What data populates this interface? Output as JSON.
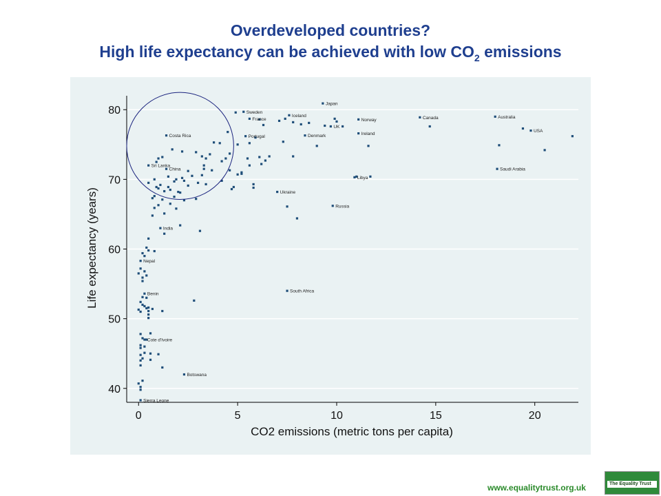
{
  "header": {
    "title_line1": "Overdeveloped countries?",
    "title_line2_main": "High life expectancy can be achieved with low CO",
    "title_line2_sub": "2",
    "title_line2_end": " emissions"
  },
  "footer": {
    "url": "www.equalitytrust.org.uk",
    "logo_text": "The Equality Trust"
  },
  "colors": {
    "title": "#1f3f8f",
    "panel": "#eaf2f3",
    "marker": "#1f4e79",
    "circle": "#1a237e",
    "url": "#2a8a2a"
  },
  "chart_data": {
    "type": "scatter",
    "xlabel": "CO2 emissions (metric tons per capita)",
    "ylabel": "Life expectancy (years)",
    "xlim": [
      -0.6,
      22.2
    ],
    "ylim": [
      38,
      82
    ],
    "xticks": [
      0,
      5,
      10,
      15,
      20
    ],
    "yticks": [
      40,
      50,
      60,
      70,
      80
    ],
    "grid": true,
    "annotation": {
      "type": "circle",
      "center": [
        2.1,
        74.8
      ],
      "radius_x": 2.7
    },
    "labeled_points": [
      {
        "label": "Japan",
        "x": 9.3,
        "y": 80.9
      },
      {
        "label": "Sweden",
        "x": 5.3,
        "y": 79.7
      },
      {
        "label": "Iceland",
        "x": 7.6,
        "y": 79.2
      },
      {
        "label": "France",
        "x": 5.6,
        "y": 78.7
      },
      {
        "label": "Norway",
        "x": 11.1,
        "y": 78.6
      },
      {
        "label": "Canada",
        "x": 14.2,
        "y": 78.9
      },
      {
        "label": "Australia",
        "x": 18.0,
        "y": 79.0
      },
      {
        "label": "UK",
        "x": 9.7,
        "y": 77.6
      },
      {
        "label": "USA",
        "x": 19.8,
        "y": 77.0
      },
      {
        "label": "Ireland",
        "x": 11.1,
        "y": 76.6
      },
      {
        "label": "Denmark",
        "x": 8.4,
        "y": 76.3
      },
      {
        "label": "Portugal",
        "x": 5.4,
        "y": 76.2
      },
      {
        "label": "Costa Rica",
        "x": 1.4,
        "y": 76.3
      },
      {
        "label": "Sri Lanka",
        "x": 0.5,
        "y": 72.0
      },
      {
        "label": "Saudi Arabia",
        "x": 18.1,
        "y": 71.5
      },
      {
        "label": "China",
        "x": 1.4,
        "y": 71.5
      },
      {
        "label": "Libya",
        "x": 10.9,
        "y": 70.3
      },
      {
        "label": "Ukraine",
        "x": 7.0,
        "y": 68.2
      },
      {
        "label": "Russia",
        "x": 9.8,
        "y": 66.2
      },
      {
        "label": "India",
        "x": 1.1,
        "y": 63.0
      },
      {
        "label": "Nepal",
        "x": 0.1,
        "y": 58.3
      },
      {
        "label": "South Africa",
        "x": 7.5,
        "y": 54.0
      },
      {
        "label": "Benin",
        "x": 0.3,
        "y": 53.6
      },
      {
        "label": "Cote d'Ivoire",
        "x": 0.3,
        "y": 47.0
      },
      {
        "label": "Botswana",
        "x": 2.3,
        "y": 42.0
      },
      {
        "label": "Sierra Leone",
        "x": 0.1,
        "y": 38.3
      }
    ],
    "points": [
      [
        4.9,
        79.6
      ],
      [
        6.1,
        78.6
      ],
      [
        6.3,
        77.8
      ],
      [
        7.1,
        78.4
      ],
      [
        7.4,
        78.7
      ],
      [
        7.8,
        78.2
      ],
      [
        8.2,
        77.9
      ],
      [
        8.6,
        78.1
      ],
      [
        9.4,
        77.7
      ],
      [
        9.9,
        78.7
      ],
      [
        10.0,
        78.3
      ],
      [
        10.3,
        77.6
      ],
      [
        14.7,
        77.6
      ],
      [
        18.2,
        74.9
      ],
      [
        20.5,
        74.2
      ],
      [
        21.9,
        76.2
      ],
      [
        19.4,
        77.3
      ],
      [
        11.6,
        74.8
      ],
      [
        7.3,
        75.4
      ],
      [
        9.0,
        74.8
      ],
      [
        5.0,
        75.0
      ],
      [
        5.6,
        75.2
      ],
      [
        5.9,
        76.0
      ],
      [
        3.8,
        75.3
      ],
      [
        4.1,
        75.2
      ],
      [
        4.5,
        76.8
      ],
      [
        4.6,
        73.7
      ],
      [
        4.4,
        73.0
      ],
      [
        3.6,
        73.6
      ],
      [
        3.2,
        73.3
      ],
      [
        2.9,
        73.9
      ],
      [
        2.2,
        74.0
      ],
      [
        1.7,
        74.3
      ],
      [
        1.0,
        73.0
      ],
      [
        0.9,
        72.5
      ],
      [
        1.2,
        73.2
      ],
      [
        3.4,
        73.0
      ],
      [
        3.3,
        72.0
      ],
      [
        3.3,
        71.5
      ],
      [
        3.7,
        71.3
      ],
      [
        3.2,
        70.6
      ],
      [
        2.5,
        71.2
      ],
      [
        2.7,
        70.5
      ],
      [
        2.2,
        70.2
      ],
      [
        1.9,
        70.0
      ],
      [
        1.8,
        69.7
      ],
      [
        2.3,
        69.8
      ],
      [
        1.5,
        70.4
      ],
      [
        1.1,
        69.2
      ],
      [
        0.9,
        68.9
      ],
      [
        1.0,
        68.7
      ],
      [
        0.8,
        70.0
      ],
      [
        0.5,
        69.5
      ],
      [
        1.3,
        68.3
      ],
      [
        1.6,
        68.5
      ],
      [
        3.0,
        69.5
      ],
      [
        3.4,
        69.3
      ],
      [
        4.2,
        69.8
      ],
      [
        2.1,
        68.1
      ],
      [
        1.8,
        67.5
      ],
      [
        2.9,
        67.2
      ],
      [
        0.8,
        67.6
      ],
      [
        0.7,
        67.3
      ],
      [
        1.2,
        67.1
      ],
      [
        1.6,
        66.5
      ],
      [
        1.0,
        66.3
      ],
      [
        0.8,
        65.9
      ],
      [
        0.7,
        64.8
      ],
      [
        1.3,
        65.1
      ],
      [
        1.9,
        65.8
      ],
      [
        2.3,
        67.0
      ],
      [
        2.1,
        63.4
      ],
      [
        3.1,
        62.6
      ],
      [
        1.3,
        62.2
      ],
      [
        0.5,
        61.5
      ],
      [
        0.4,
        60.2
      ],
      [
        0.5,
        59.8
      ],
      [
        0.8,
        59.7
      ],
      [
        0.2,
        59.4
      ],
      [
        0.3,
        59.0
      ],
      [
        0.1,
        57.2
      ],
      [
        0.3,
        56.8
      ],
      [
        0.4,
        56.2
      ],
      [
        0.0,
        56.5
      ],
      [
        0.2,
        55.9
      ],
      [
        0.2,
        55.4
      ],
      [
        0.2,
        53.1
      ],
      [
        0.4,
        53.0
      ],
      [
        0.1,
        52.4
      ],
      [
        0.2,
        52.0
      ],
      [
        0.3,
        51.8
      ],
      [
        0.4,
        51.5
      ],
      [
        0.5,
        51.6
      ],
      [
        0.0,
        51.3
      ],
      [
        0.1,
        51.0
      ],
      [
        0.5,
        51.1
      ],
      [
        0.7,
        51.4
      ],
      [
        0.5,
        50.6
      ],
      [
        0.5,
        50.1
      ],
      [
        1.2,
        51.1
      ],
      [
        2.8,
        52.6
      ],
      [
        0.6,
        47.9
      ],
      [
        0.1,
        47.8
      ],
      [
        0.4,
        47.0
      ],
      [
        0.2,
        47.2
      ],
      [
        0.1,
        46.2
      ],
      [
        0.3,
        46.0
      ],
      [
        0.1,
        45.8
      ],
      [
        0.3,
        45.1
      ],
      [
        0.1,
        44.8
      ],
      [
        0.6,
        45.0
      ],
      [
        0.2,
        44.3
      ],
      [
        0.1,
        44.0
      ],
      [
        1.0,
        44.9
      ],
      [
        0.6,
        44.1
      ],
      [
        0.1,
        43.3
      ],
      [
        1.2,
        43.0
      ],
      [
        0.2,
        41.1
      ],
      [
        0.0,
        40.7
      ],
      [
        0.1,
        40.2
      ],
      [
        0.1,
        39.8
      ],
      [
        5.2,
        71.0
      ],
      [
        5.6,
        72.0
      ],
      [
        6.4,
        72.7
      ],
      [
        6.6,
        73.3
      ],
      [
        7.8,
        73.3
      ],
      [
        6.2,
        72.2
      ],
      [
        5.5,
        73.0
      ],
      [
        5.0,
        70.7
      ],
      [
        4.8,
        68.9
      ],
      [
        4.7,
        68.6
      ],
      [
        5.8,
        69.3
      ],
      [
        5.8,
        68.8
      ],
      [
        6.1,
        73.2
      ],
      [
        5.2,
        70.8
      ],
      [
        11.7,
        70.4
      ],
      [
        7.5,
        66.1
      ],
      [
        8.0,
        64.4
      ],
      [
        11.0,
        70.4
      ],
      [
        4.6,
        71.3
      ],
      [
        4.2,
        72.6
      ],
      [
        2.5,
        69.1
      ],
      [
        2.0,
        68.2
      ],
      [
        1.5,
        68.9
      ]
    ]
  }
}
